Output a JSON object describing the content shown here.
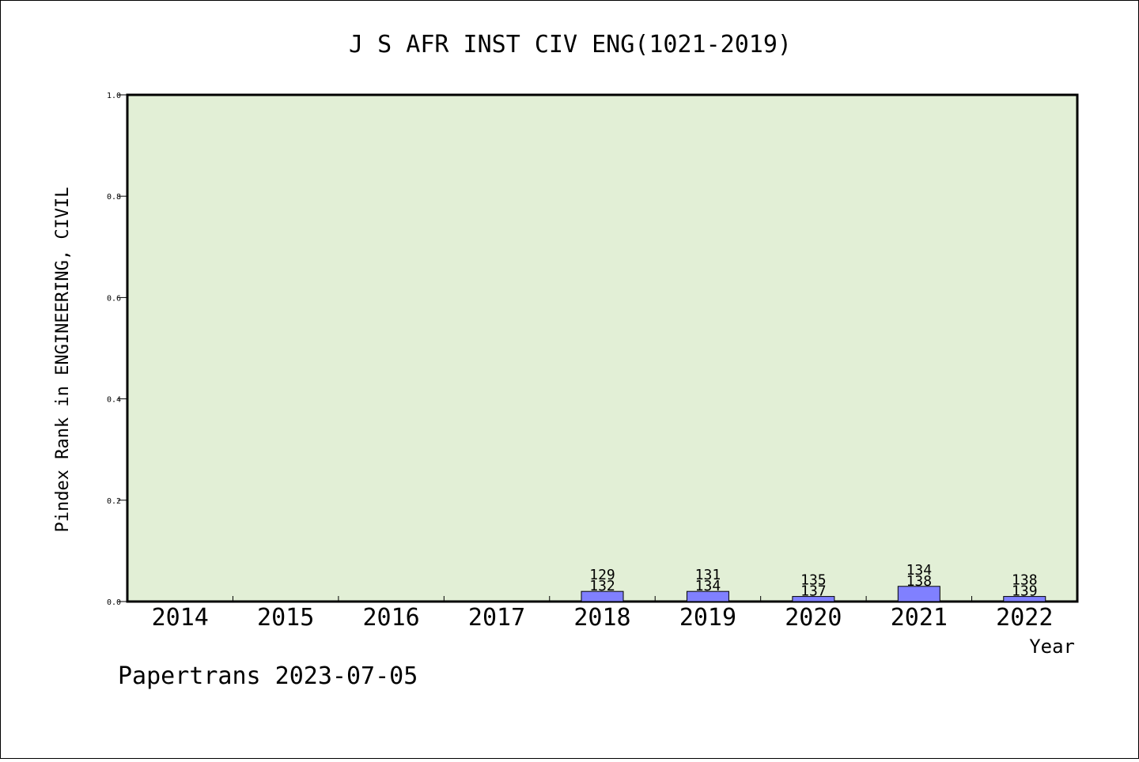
{
  "chart_data": {
    "type": "bar",
    "title": "J S AFR INST CIV ENG(1021-2019)",
    "xlabel": "Year",
    "ylabel": "Pindex Rank in ENGINEERING, CIVIL",
    "ylim": [
      0,
      1.0
    ],
    "yticks": [
      "0.0",
      "0.2",
      "0.4",
      "0.6",
      "0.8",
      "1.0"
    ],
    "categories": [
      "2014",
      "2015",
      "2016",
      "2017",
      "2018",
      "2019",
      "2020",
      "2021",
      "2022"
    ],
    "values": [
      null,
      null,
      null,
      null,
      0.02,
      0.02,
      0.01,
      0.03,
      0.01
    ],
    "labels": [
      null,
      null,
      null,
      null,
      [
        "129",
        "132"
      ],
      [
        "131",
        "134"
      ],
      [
        "135",
        "137"
      ],
      [
        "134",
        "138"
      ],
      [
        "138",
        "139"
      ]
    ],
    "grid": false,
    "legend": "none",
    "colors": {
      "plot_bg": "#e2efd6",
      "bar": "#8080ff",
      "axis": "#000000"
    }
  },
  "footer": "Papertrans 2023-07-05"
}
